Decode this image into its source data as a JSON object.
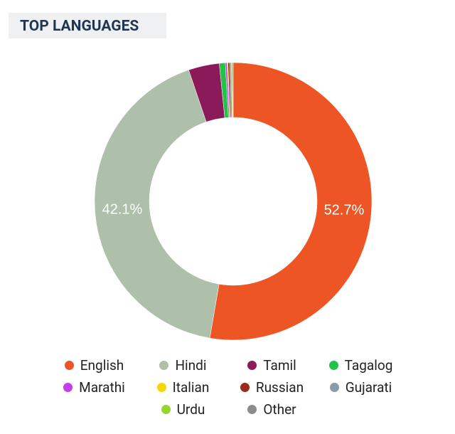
{
  "chart_data": {
    "type": "donut",
    "title": "TOP LANGUAGES",
    "categories": [
      "English",
      "Hindi",
      "Tamil",
      "Tagalog",
      "Marathi",
      "Italian",
      "Russian",
      "Gujarati",
      "Urdu",
      "Other"
    ],
    "values": [
      52.7,
      42.1,
      3.6,
      0.7,
      0.2,
      0.1,
      0.2,
      0.2,
      0.1,
      0.1
    ],
    "value_labels": [
      "52.7%",
      "42.1%",
      null,
      null,
      null,
      null,
      null,
      null,
      null,
      null
    ],
    "colors": [
      "#ee5524",
      "#aebfaa",
      "#8b1a5a",
      "#22c447",
      "#c33ef0",
      "#f5d800",
      "#9a2a1e",
      "#8a9aa8",
      "#96d62a",
      "#8c8c8c"
    ]
  }
}
